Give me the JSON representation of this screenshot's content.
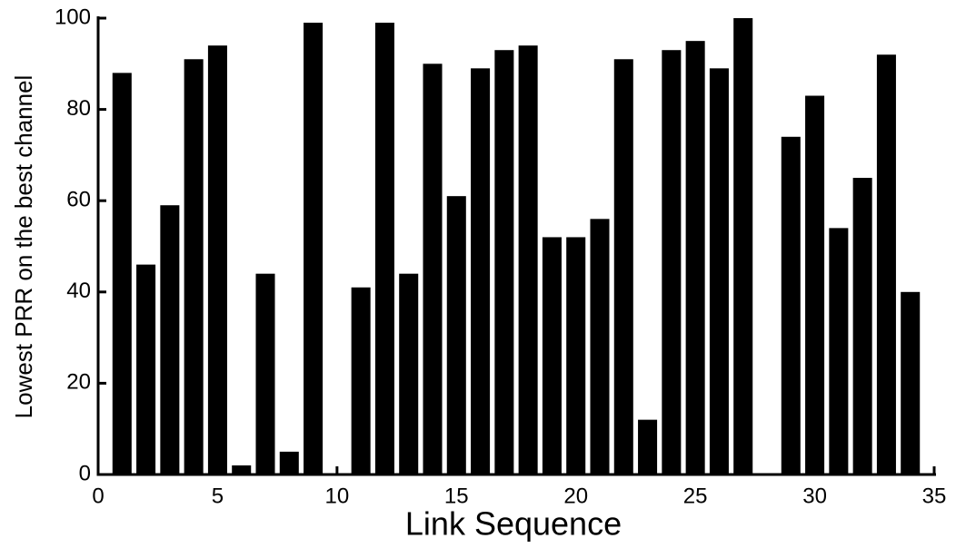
{
  "chart_data": {
    "type": "bar",
    "xlabel": "Link Sequence",
    "ylabel": "Lowest PRR on the best channel",
    "x": [
      1,
      2,
      3,
      4,
      5,
      6,
      7,
      8,
      9,
      10,
      11,
      12,
      13,
      14,
      15,
      16,
      17,
      18,
      19,
      20,
      21,
      22,
      23,
      24,
      25,
      26,
      27,
      28,
      29,
      30,
      31,
      32,
      33,
      34
    ],
    "values": [
      88,
      46,
      59,
      91,
      94,
      2,
      44,
      5,
      99,
      0,
      41,
      99,
      44,
      90,
      61,
      89,
      93,
      94,
      52,
      52,
      56,
      91,
      12,
      93,
      95,
      89,
      100,
      0,
      74,
      83,
      54,
      65,
      92,
      40
    ],
    "color": "#000000",
    "xlim": [
      0,
      35
    ],
    "xticks": [
      0,
      5,
      10,
      15,
      20,
      25,
      30,
      35
    ],
    "ylim": [
      0,
      100
    ],
    "yticks": [
      0,
      20,
      40,
      60,
      80,
      100
    ]
  }
}
